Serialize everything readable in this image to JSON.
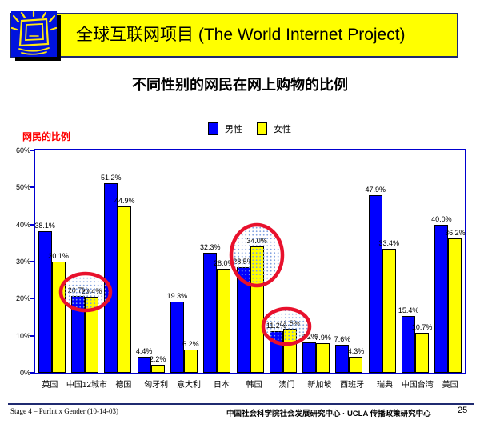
{
  "header": {
    "title": "全球互联网项目 (The World Internet Project)",
    "logo": "shining-monitor-icon"
  },
  "subtitle": "不同性别的网民在网上购物的比例",
  "legend": {
    "items": [
      {
        "label": "男性",
        "color": "#0000FF"
      },
      {
        "label": "女性",
        "color": "#FFFF00"
      }
    ]
  },
  "chart_data": {
    "type": "bar",
    "title": "不同性别的网民在网上购物的比例",
    "ylabel": "网民的比例",
    "xlabel": "",
    "ylim": [
      0,
      60
    ],
    "grid": false,
    "legend_position": "top",
    "y_ticks": [
      {
        "value": 0,
        "label": "0%"
      },
      {
        "value": 10,
        "label": "10%"
      },
      {
        "value": 20,
        "label": "20%"
      },
      {
        "value": 30,
        "label": "30%"
      },
      {
        "value": 40,
        "label": "40%"
      },
      {
        "value": 50,
        "label": "50%"
      },
      {
        "value": 60,
        "label": "60%"
      }
    ],
    "categories": [
      "英国",
      "中国12城市",
      "德国",
      "匈牙利",
      "意大利",
      "日本",
      "韩国",
      "澳门",
      "新加坡",
      "西班牙",
      "瑞典",
      "中国台湾",
      "美国"
    ],
    "series": [
      {
        "name": "男性",
        "color": "#0000FF",
        "values": [
          38.1,
          20.7,
          51.2,
          4.4,
          19.3,
          32.3,
          28.5,
          11.2,
          8.2,
          7.6,
          47.9,
          15.4,
          40.0
        ],
        "labels": [
          "38.1%",
          "20.7%",
          "51.2%",
          "4.4%",
          "19.3%",
          "32.3%",
          "28.5%",
          "11.2%",
          "8.2%",
          "7.6%",
          "47.9%",
          "15.4%",
          "40.0%"
        ]
      },
      {
        "name": "女性",
        "color": "#FFFF00",
        "values": [
          30.1,
          20.4,
          44.9,
          2.2,
          6.2,
          28.0,
          34.0,
          11.8,
          7.9,
          4.3,
          33.4,
          10.7,
          36.2
        ],
        "labels": [
          "30.1%",
          "20.4%",
          "44.9%",
          "2.2%",
          "6.2%",
          "28.0%",
          "34.0%",
          "11.8%",
          "7.9%",
          "4.3%",
          "33.4%",
          "10.7%",
          "36.2%"
        ]
      }
    ],
    "highlighted_categories": [
      "中国12城市",
      "韩国",
      "澳门"
    ],
    "annotation_style": {
      "stroke": "#e8112d",
      "dot_fill": "#7fa0e0"
    }
  },
  "footer": {
    "left": "Stage 4 – PurInt x Gender (10-14-03)",
    "center": "中国社会科学院社会发展研究中心 · UCLA 传播政策研究中心",
    "page": "25"
  }
}
